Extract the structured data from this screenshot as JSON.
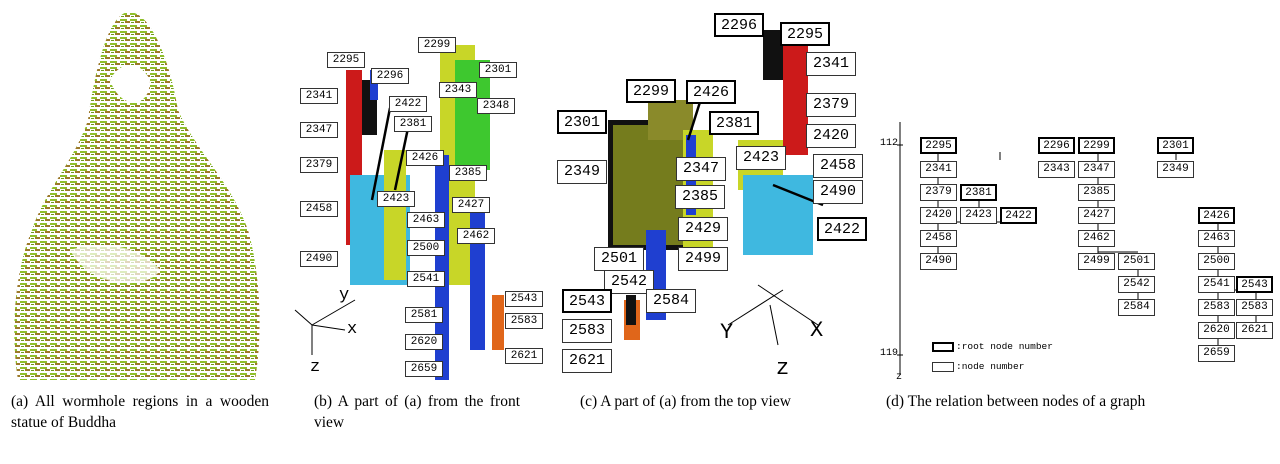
{
  "captions": {
    "a": "(a) All wormhole regions in a wooden statue of Buddha",
    "b": "(b) A part of (a) from the front view",
    "c": "(c) A part of (a) from the top view",
    "d": "(d) The relation between nodes of a graph"
  },
  "panel_b": {
    "nodes": [
      "2295",
      "2296",
      "2341",
      "2422",
      "2381",
      "2347",
      "2379",
      "2426",
      "2423",
      "2458",
      "2490",
      "2299",
      "2343",
      "2301",
      "2348",
      "2385",
      "2427",
      "2462",
      "2463",
      "2500",
      "2541",
      "2581",
      "2620",
      "2659",
      "2543",
      "2583",
      "2621"
    ],
    "axes": {
      "y": "y",
      "x": "x",
      "z": "z"
    }
  },
  "panel_c": {
    "nodes": [
      "2296",
      "2295",
      "2341",
      "2299",
      "2426",
      "2301",
      "2381",
      "2379",
      "2420",
      "2347",
      "2423",
      "2458",
      "2349",
      "2385",
      "2490",
      "2422",
      "2429",
      "2501",
      "2499",
      "2542",
      "2543",
      "2584",
      "2583",
      "2621"
    ],
    "axes": {
      "y": "Y",
      "x": "X",
      "z": "z"
    }
  },
  "panel_d": {
    "z_top": "112",
    "z_bottom": "119",
    "z_label": "z",
    "legend_root": ":root node number",
    "legend_node": ":node number",
    "nodes": [
      "2295",
      "2341",
      "2379",
      "2381",
      "2420",
      "2423",
      "2422",
      "2458",
      "2490",
      "2296",
      "2343",
      "2299",
      "2347",
      "2385",
      "2427",
      "2462",
      "2499",
      "2501",
      "2542",
      "2584",
      "2301",
      "2349",
      "2426",
      "2463",
      "2500",
      "2541",
      "2543",
      "2583",
      "2583",
      "2620",
      "2621",
      "2659"
    ]
  },
  "colors": {
    "wood_green": "#8fbf2a",
    "wood_brown": "#9c7a2a",
    "red": "#cc1a1a",
    "blue": "#1f3fd0",
    "cyan": "#3fb8e0",
    "yellow_green": "#c8d628",
    "green": "#3ec82f",
    "black": "#111111",
    "orange": "#e0661a"
  }
}
